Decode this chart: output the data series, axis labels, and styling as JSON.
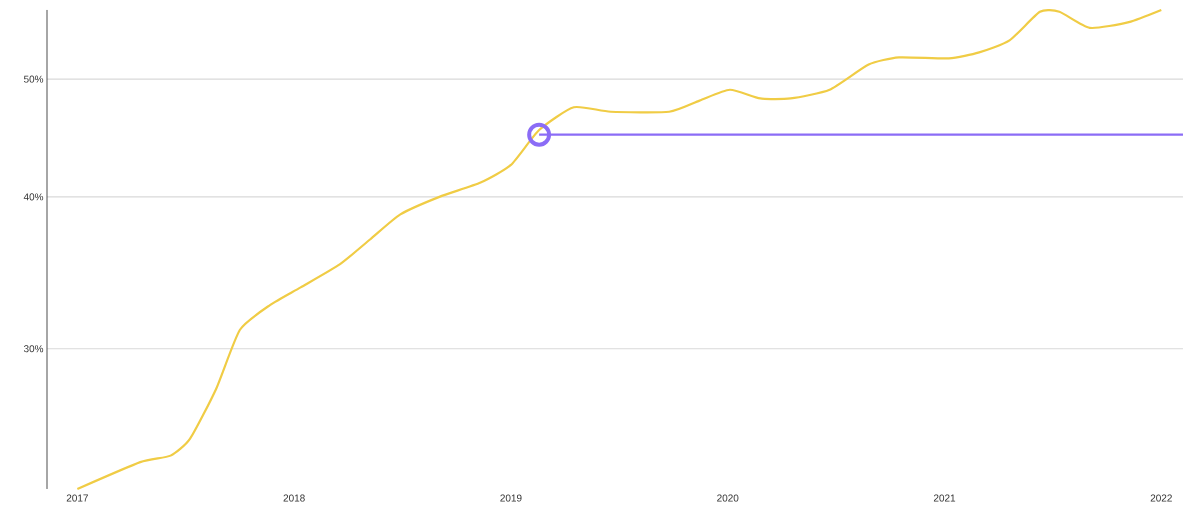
{
  "chart_data": {
    "type": "line",
    "log": "y",
    "grid": "y",
    "xlim": [
      2016.86,
      2022.1
    ],
    "ylim": [
      23,
      57
    ],
    "xticks": [
      2017,
      2018,
      2019,
      2020,
      2021,
      2022
    ],
    "yticks": [
      {
        "value": 30,
        "label": "30%"
      },
      {
        "value": 40,
        "label": "40%"
      },
      {
        "value": 50,
        "label": "50%"
      }
    ],
    "series": [
      {
        "color": "#f0cc45",
        "x": [
          2017,
          2017.29,
          2017.43,
          2017.52,
          2017.64,
          2017.75,
          2017.89,
          2018.03,
          2018.21,
          2018.35,
          2018.49,
          2018.67,
          2018.86,
          2019.0,
          2019.13,
          2019.29,
          2019.46,
          2019.73,
          2019.87,
          2020.01,
          2020.15,
          2020.29,
          2020.47,
          2020.65,
          2020.79,
          2021.02,
          2021.16,
          2021.3,
          2021.44,
          2021.53,
          2021.67,
          2021.85,
          2022.0
        ],
        "values": [
          23.0,
          24.2,
          24.5,
          25.3,
          27.8,
          31.1,
          32.6,
          33.7,
          35.2,
          36.9,
          38.7,
          40.0,
          41.1,
          42.5,
          45.4,
          47.4,
          47.0,
          47.0,
          48.0,
          49.0,
          48.2,
          48.2,
          49.0,
          51.4,
          52.1,
          52.0,
          52.6,
          53.8,
          56.8,
          56.8,
          55.1,
          55.7,
          57.0
        ]
      },
      {
        "type": "line",
        "color": "#8b6cf6",
        "x": [
          2019.13,
          2022.1
        ],
        "values": [
          45,
          45
        ]
      },
      {
        "type": "scatter",
        "color": "#8b6cf6",
        "marker": "circle",
        "x": [
          2019.13
        ],
        "values": [
          45
        ]
      }
    ]
  }
}
